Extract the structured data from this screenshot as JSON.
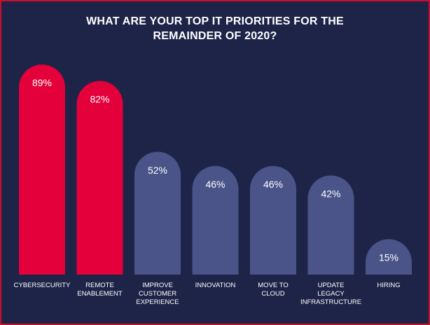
{
  "chart_data": {
    "type": "bar",
    "title": "WHAT ARE YOUR TOP IT PRIORITIES FOR THE REMAINDER OF 2020?",
    "title_lines": [
      "WHAT ARE YOUR TOP IT PRIORITIES FOR THE",
      "REMAINDER OF 2020?"
    ],
    "categories": [
      "CYBERSECURITY",
      "REMOTE\nENABLEMENT",
      "IMPROVE\nCUSTOMER\nEXPERIENCE",
      "INNOVATION",
      "MOVE TO\nCLOUD",
      "UPDATE\nLEGACY\nINFRASTRUCTURE",
      "HIRING"
    ],
    "values": [
      89,
      82,
      52,
      46,
      46,
      42,
      15
    ],
    "value_labels": [
      "89%",
      "82%",
      "52%",
      "46%",
      "46%",
      "42%",
      "15%"
    ],
    "unit": "%",
    "ylim": [
      0,
      100
    ],
    "grid": false,
    "legend": "none",
    "colors": {
      "background": "#1e2448",
      "highlight": "#e4003b",
      "bar": "#4a5489",
      "text": "#ffffff",
      "border": "#c8102e"
    },
    "highlight_count": 2
  }
}
